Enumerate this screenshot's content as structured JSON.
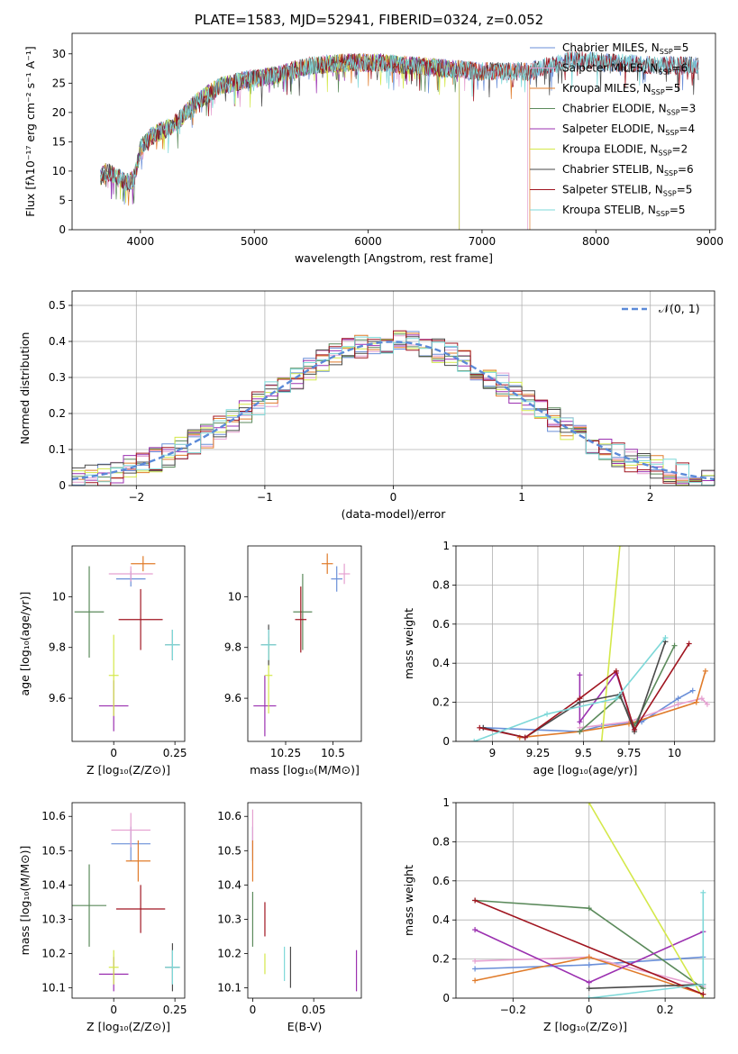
{
  "figure_title": "PLATE=1583, MJD=52941, FIBERID=0324, z=0.052",
  "chart_data": [
    {
      "id": "spectrum",
      "type": "line",
      "title": "",
      "xlabel": "wavelength [Angstrom, rest frame]",
      "ylabel": "Flux [fλ10⁻¹⁷ erg cm⁻² s⁻¹ A⁻¹]",
      "xlim": [
        3400,
        9050
      ],
      "ylim": [
        0,
        33.5
      ],
      "xticks": [
        4000,
        5000,
        6000,
        7000,
        8000,
        9000
      ],
      "yticks": [
        0,
        5,
        10,
        15,
        20,
        25,
        30
      ],
      "grid": false,
      "legend_position": "top-right",
      "continuum": {
        "x": [
          3650,
          3700,
          3800,
          3900,
          3950,
          4000,
          4100,
          4200,
          4300,
          4400,
          4500,
          4700,
          4900,
          5100,
          5300,
          5500,
          5800,
          6100,
          6400,
          6700,
          7000,
          7400,
          7800,
          8200,
          8500,
          8800
        ],
        "y": [
          9,
          10,
          9,
          8,
          9,
          14,
          16,
          17,
          18,
          20,
          22,
          24.5,
          25.5,
          26,
          27,
          28,
          28.5,
          28.5,
          28,
          27.5,
          27,
          27,
          29,
          28.5,
          28,
          28
        ]
      },
      "series": [
        {
          "name": "Chabrier MILES, N_SSP=5",
          "label_main": "Chabrier MILES, N",
          "label_sub": "SSP",
          "label_tail": "=5",
          "color": "#6a8fd8",
          "x_end": 8900
        },
        {
          "name": "Salpeter MILES, N_SSP=6",
          "label_main": "Salpeter MILES, N",
          "label_sub": "SSP",
          "label_tail": "=6",
          "color": "#e5a0d0",
          "x_end": 7400
        },
        {
          "name": "Kroupa MILES, N_SSP=5",
          "label_main": "Kroupa MILES, N",
          "label_sub": "SSP",
          "label_tail": "=5",
          "color": "#e07b2a",
          "x_end": 7420
        },
        {
          "name": "Chabrier ELODIE, N_SSP=3",
          "label_main": "Chabrier ELODIE, N",
          "label_sub": "SSP",
          "label_tail": "=3",
          "color": "#5b8a5b",
          "x_end": 6800
        },
        {
          "name": "Salpeter ELODIE, N_SSP=4",
          "label_main": "Salpeter ELODIE, N",
          "label_sub": "SSP",
          "label_tail": "=4",
          "color": "#9b30b0",
          "x_end": 6800
        },
        {
          "name": "Kroupa ELODIE, N_SSP=2",
          "label_main": "Kroupa ELODIE, N",
          "label_sub": "SSP",
          "label_tail": "=2",
          "color": "#d4e84a",
          "x_end": 6800
        },
        {
          "name": "Chabrier STELIB, N_SSP=6",
          "label_main": "Chabrier STELIB, N",
          "label_sub": "SSP",
          "label_tail": "=6",
          "color": "#4a4a4a",
          "x_end": 8900
        },
        {
          "name": "Salpeter STELIB, N_SSP=5",
          "label_main": "Salpeter STELIB, N",
          "label_sub": "SSP",
          "label_tail": "=5",
          "color": "#a01520",
          "x_end": 8900
        },
        {
          "name": "Kroupa STELIB, N_SSP=5",
          "label_main": "Kroupa STELIB, N",
          "label_sub": "SSP",
          "label_tail": "=5",
          "color": "#7dd8d8",
          "x_end": 8900
        }
      ]
    },
    {
      "id": "residuals",
      "type": "histogram",
      "title": "",
      "xlabel": "(data-model)/error",
      "ylabel": "Normed distribution",
      "xlim": [
        -2.5,
        2.5
      ],
      "ylim": [
        0,
        0.54
      ],
      "xticks": [
        -2,
        -1,
        0,
        1,
        2
      ],
      "yticks": [
        0.0,
        0.1,
        0.2,
        0.3,
        0.4,
        0.5
      ],
      "grid": true,
      "bin_width": 0.1,
      "legend_position": "top-right",
      "reference_label": "𝒩(0, 1)",
      "reference_color": "#5b8ad8",
      "colors": [
        "#6a8fd8",
        "#e5a0d0",
        "#e07b2a",
        "#5b8a5b",
        "#9b30b0",
        "#d4e84a",
        "#4a4a4a",
        "#a01520",
        "#7dd8d8"
      ]
    },
    {
      "id": "age-vs-z",
      "type": "scatter",
      "xlabel": "Z [log₁₀(Z/Z⊙)]",
      "ylabel": "age  [log₁₀(age/yr)]",
      "xlim": [
        -0.17,
        0.29
      ],
      "ylim": [
        9.43,
        10.2
      ],
      "xticks": [
        0.0,
        0.25
      ],
      "yticks": [
        9.6,
        9.8,
        10.0
      ],
      "grid": false,
      "points": [
        {
          "x": 0.07,
          "y": 10.07,
          "ex": 0.06,
          "ey": 0.03,
          "color": "#6a8fd8"
        },
        {
          "x": 0.07,
          "y": 10.09,
          "ex": 0.09,
          "ey": 0.03,
          "color": "#e5a0d0"
        },
        {
          "x": 0.12,
          "y": 10.13,
          "ex": 0.05,
          "ey": 0.03,
          "color": "#e07b2a"
        },
        {
          "x": -0.1,
          "y": 9.94,
          "ex": 0.06,
          "ey": 0.18,
          "color": "#5b8a5b"
        },
        {
          "x": 0.0,
          "y": 9.57,
          "ex": 0.06,
          "ey": 0.1,
          "color": "#9b30b0"
        },
        {
          "x": 0.0,
          "y": 9.69,
          "ex": 0.02,
          "ey": 0.16,
          "color": "#d4e84a"
        },
        {
          "x": 0.24,
          "y": 9.81,
          "ex": 0.03,
          "ey": 0.06,
          "color": "#4a4a4a"
        },
        {
          "x": 0.11,
          "y": 9.91,
          "ex": 0.09,
          "ey": 0.12,
          "color": "#a01520"
        },
        {
          "x": 0.24,
          "y": 9.81,
          "ex": 0.03,
          "ey": 0.06,
          "color": "#7dd8d8"
        }
      ]
    },
    {
      "id": "age-vs-mass",
      "type": "scatter",
      "xlabel": "mass [log₁₀(M/M⊙)]",
      "ylabel": "",
      "xlim": [
        10.05,
        10.65
      ],
      "ylim": [
        9.43,
        10.2
      ],
      "xticks": [
        10.25,
        10.5
      ],
      "yticks": [
        9.6,
        9.8,
        10.0
      ],
      "grid": false,
      "points": [
        {
          "x": 10.52,
          "y": 10.07,
          "ex": 0.03,
          "ey": 0.05,
          "color": "#6a8fd8"
        },
        {
          "x": 10.56,
          "y": 10.09,
          "ex": 0.03,
          "ey": 0.04,
          "color": "#e5a0d0"
        },
        {
          "x": 10.47,
          "y": 10.13,
          "ex": 0.03,
          "ey": 0.04,
          "color": "#e07b2a"
        },
        {
          "x": 10.34,
          "y": 9.94,
          "ex": 0.05,
          "ey": 0.15,
          "color": "#5b8a5b"
        },
        {
          "x": 10.14,
          "y": 9.57,
          "ex": 0.06,
          "ey": 0.12,
          "color": "#9b30b0"
        },
        {
          "x": 10.16,
          "y": 9.69,
          "ex": 0.02,
          "ey": 0.15,
          "color": "#d4e84a"
        },
        {
          "x": 10.16,
          "y": 9.81,
          "ex": 0.04,
          "ey": 0.08,
          "color": "#4a4a4a"
        },
        {
          "x": 10.33,
          "y": 9.91,
          "ex": 0.03,
          "ey": 0.13,
          "color": "#a01520"
        },
        {
          "x": 10.16,
          "y": 9.81,
          "ex": 0.04,
          "ey": 0.06,
          "color": "#7dd8d8"
        }
      ]
    },
    {
      "id": "mass-weight-vs-age",
      "type": "line",
      "xlabel": "age  [log₁₀(age/yr)]",
      "ylabel": "mass weight",
      "xlim": [
        8.8,
        10.22
      ],
      "ylim": [
        0,
        1.0
      ],
      "xticks": [
        9.0,
        9.25,
        9.5,
        9.75,
        10.0
      ],
      "yticks": [
        0.0,
        0.2,
        0.4,
        0.6,
        0.8,
        1.0
      ],
      "grid": true,
      "series": [
        {
          "color": "#6a8fd8",
          "points": [
            [
              8.95,
              0.07
            ],
            [
              9.48,
              0.05
            ],
            [
              9.6,
              0.08
            ],
            [
              9.82,
              0.1
            ],
            [
              10.02,
              0.22
            ],
            [
              10.1,
              0.26
            ]
          ]
        },
        {
          "color": "#e5a0d0",
          "points": [
            [
              9.48,
              0.07
            ],
            [
              9.75,
              0.1
            ],
            [
              10.02,
              0.19
            ],
            [
              10.15,
              0.22
            ],
            [
              10.18,
              0.19
            ]
          ]
        },
        {
          "color": "#e07b2a",
          "points": [
            [
              9.15,
              0.02
            ],
            [
              9.48,
              0.05
            ],
            [
              9.75,
              0.09
            ],
            [
              10.12,
              0.2
            ],
            [
              10.17,
              0.36
            ]
          ]
        },
        {
          "color": "#5b8a5b",
          "points": [
            [
              9.48,
              0.05
            ],
            [
              9.7,
              0.23
            ],
            [
              9.78,
              0.08
            ],
            [
              10.0,
              0.49
            ]
          ]
        },
        {
          "color": "#9b30b0",
          "points": [
            [
              9.48,
              0.34
            ],
            [
              9.48,
              0.1
            ],
            [
              9.68,
              0.35
            ],
            [
              9.78,
              0.06
            ]
          ]
        },
        {
          "color": "#d4e84a",
          "points": [
            [
              9.6,
              0.0
            ],
            [
              9.7,
              1.0
            ]
          ]
        },
        {
          "color": "#4a4a4a",
          "points": [
            [
              8.95,
              0.07
            ],
            [
              9.18,
              0.02
            ],
            [
              9.48,
              0.2
            ],
            [
              9.7,
              0.24
            ],
            [
              9.78,
              0.05
            ],
            [
              9.95,
              0.51
            ]
          ]
        },
        {
          "color": "#a01520",
          "points": [
            [
              8.93,
              0.07
            ],
            [
              9.18,
              0.02
            ],
            [
              9.48,
              0.22
            ],
            [
              9.68,
              0.36
            ],
            [
              9.78,
              0.06
            ],
            [
              10.08,
              0.5
            ]
          ]
        },
        {
          "color": "#7dd8d8",
          "points": [
            [
              8.9,
              0.0
            ],
            [
              9.3,
              0.14
            ],
            [
              9.68,
              0.22
            ],
            [
              9.95,
              0.53
            ]
          ]
        }
      ]
    },
    {
      "id": "mass-vs-z",
      "type": "scatter",
      "xlabel": "Z [log₁₀(Z/Z⊙)]",
      "ylabel": "mass [log₁₀(M/M⊙)]",
      "xlim": [
        -0.17,
        0.29
      ],
      "ylim": [
        10.07,
        10.64
      ],
      "xticks": [
        0.0,
        0.25
      ],
      "yticks": [
        10.1,
        10.2,
        10.3,
        10.4,
        10.5,
        10.6
      ],
      "grid": false,
      "points": [
        {
          "x": 0.07,
          "y": 10.52,
          "ex": 0.08,
          "ey": 0.05,
          "color": "#6a8fd8"
        },
        {
          "x": 0.07,
          "y": 10.56,
          "ex": 0.08,
          "ey": 0.05,
          "color": "#e5a0d0"
        },
        {
          "x": 0.1,
          "y": 10.47,
          "ex": 0.05,
          "ey": 0.06,
          "color": "#e07b2a"
        },
        {
          "x": -0.1,
          "y": 10.34,
          "ex": 0.07,
          "ey": 0.12,
          "color": "#5b8a5b"
        },
        {
          "x": 0.0,
          "y": 10.14,
          "ex": 0.06,
          "ey": 0.05,
          "color": "#9b30b0"
        },
        {
          "x": 0.0,
          "y": 10.16,
          "ex": 0.02,
          "ey": 0.05,
          "color": "#d4e84a"
        },
        {
          "x": 0.24,
          "y": 10.16,
          "ex": 0.03,
          "ey": 0.07,
          "color": "#4a4a4a"
        },
        {
          "x": 0.11,
          "y": 10.33,
          "ex": 0.1,
          "ey": 0.07,
          "color": "#a01520"
        },
        {
          "x": 0.24,
          "y": 10.16,
          "ex": 0.03,
          "ey": 0.05,
          "color": "#7dd8d8"
        }
      ]
    },
    {
      "id": "mass-vs-ebv",
      "type": "scatter",
      "xlabel": "E(B-V)",
      "ylabel": "",
      "xlim": [
        -0.004,
        0.089
      ],
      "ylim": [
        10.07,
        10.64
      ],
      "xticks": [
        0.0,
        0.05
      ],
      "yticks": [
        10.1,
        10.2,
        10.3,
        10.4,
        10.5,
        10.6
      ],
      "grid": false,
      "points": [
        {
          "x": 0.0,
          "y": 10.52,
          "ex": 0.0,
          "ey": 0.05,
          "color": "#6a8fd8"
        },
        {
          "x": 0.0,
          "y": 10.56,
          "ex": 0.0,
          "ey": 0.06,
          "color": "#e5a0d0"
        },
        {
          "x": 0.0,
          "y": 10.47,
          "ex": 0.0,
          "ey": 0.06,
          "color": "#e07b2a"
        },
        {
          "x": 0.0,
          "y": 10.3,
          "ex": 0.0,
          "ey": 0.08,
          "color": "#5b8a5b"
        },
        {
          "x": 0.085,
          "y": 10.15,
          "ex": 0.0,
          "ey": 0.06,
          "color": "#9b30b0"
        },
        {
          "x": 0.01,
          "y": 10.17,
          "ex": 0.0,
          "ey": 0.03,
          "color": "#d4e84a"
        },
        {
          "x": 0.031,
          "y": 10.16,
          "ex": 0.0,
          "ey": 0.06,
          "color": "#4a4a4a"
        },
        {
          "x": 0.01,
          "y": 10.3,
          "ex": 0.0,
          "ey": 0.05,
          "color": "#a01520"
        },
        {
          "x": 0.026,
          "y": 10.17,
          "ex": 0.0,
          "ey": 0.05,
          "color": "#7dd8d8"
        }
      ]
    },
    {
      "id": "mass-weight-vs-z",
      "type": "line",
      "xlabel": "Z [log₁₀(Z/Z⊙)]",
      "ylabel": "mass weight",
      "xlim": [
        -0.35,
        0.33
      ],
      "ylim": [
        0,
        1.0
      ],
      "xticks": [
        -0.2,
        0.0,
        0.2
      ],
      "yticks": [
        0.0,
        0.2,
        0.4,
        0.6,
        0.8,
        1.0
      ],
      "grid": true,
      "series": [
        {
          "color": "#6a8fd8",
          "points": [
            [
              -0.3,
              0.15
            ],
            [
              0.0,
              0.17
            ],
            [
              0.3,
              0.21
            ]
          ]
        },
        {
          "color": "#e5a0d0",
          "points": [
            [
              -0.3,
              0.19
            ],
            [
              0.0,
              0.21
            ],
            [
              0.3,
              0.06
            ]
          ]
        },
        {
          "color": "#e07b2a",
          "points": [
            [
              -0.3,
              0.09
            ],
            [
              0.0,
              0.21
            ],
            [
              0.3,
              0.02
            ]
          ]
        },
        {
          "color": "#5b8a5b",
          "points": [
            [
              -0.3,
              0.5
            ],
            [
              0.0,
              0.46
            ],
            [
              0.3,
              0.05
            ]
          ]
        },
        {
          "color": "#9b30b0",
          "points": [
            [
              -0.3,
              0.35
            ],
            [
              0.0,
              0.08
            ],
            [
              0.3,
              0.34
            ]
          ]
        },
        {
          "color": "#d4e84a",
          "points": [
            [
              0.0,
              1.0
            ],
            [
              0.3,
              0.0
            ]
          ]
        },
        {
          "color": "#4a4a4a",
          "points": [
            [
              0.0,
              0.05
            ],
            [
              0.3,
              0.07
            ]
          ]
        },
        {
          "color": "#a01520",
          "points": [
            [
              -0.3,
              0.5
            ],
            [
              0.3,
              0.02
            ]
          ]
        },
        {
          "color": "#7dd8d8",
          "points": [
            [
              0.0,
              0.0
            ],
            [
              0.3,
              0.07
            ],
            [
              0.3,
              0.54
            ]
          ]
        }
      ]
    }
  ]
}
